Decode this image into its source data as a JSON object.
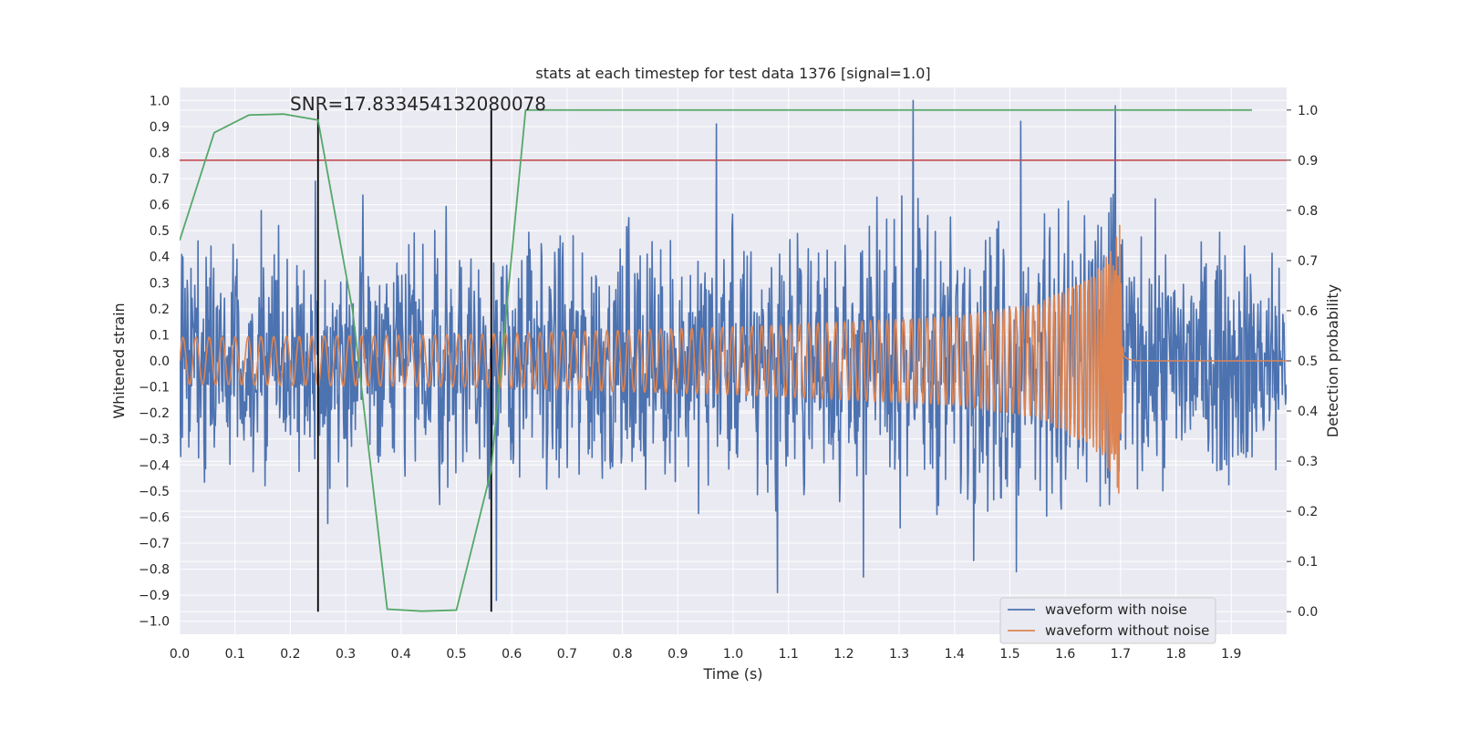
{
  "chart_data": {
    "type": "line",
    "title": "stats at each timestep for test data 1376 [signal=1.0]",
    "xlabel": "Time (s)",
    "ylabel_left": "Whitened strain",
    "ylabel_right": "Detection probability",
    "annotation": "SNR=17.833454132080078",
    "xlim": [
      0.0,
      2.0
    ],
    "ylim_left": [
      -1.05,
      1.05
    ],
    "ylim_right": [
      -0.045,
      1.045
    ],
    "x_ticks": [
      "0.0",
      "0.1",
      "0.2",
      "0.3",
      "0.4",
      "0.5",
      "0.6",
      "0.7",
      "0.8",
      "0.9",
      "1.0",
      "1.1",
      "1.2",
      "1.3",
      "1.4",
      "1.5",
      "1.6",
      "1.7",
      "1.8",
      "1.9"
    ],
    "y_ticks_left": [
      "1.0",
      "0.9",
      "0.8",
      "0.7",
      "0.6",
      "0.5",
      "0.4",
      "0.3",
      "0.2",
      "0.1",
      "0.0",
      "−0.1",
      "−0.2",
      "−0.3",
      "−0.4",
      "−0.5",
      "−0.6",
      "−0.7",
      "−0.8",
      "−0.9",
      "−1.0"
    ],
    "y_ticks_right": [
      "1.0",
      "0.9",
      "0.8",
      "0.7",
      "0.6",
      "0.5",
      "0.4",
      "0.3",
      "0.2",
      "0.1",
      "0.0"
    ],
    "grid": true,
    "legend": {
      "placement": "lower-right",
      "entries": [
        "waveform with noise",
        "waveform without noise"
      ]
    },
    "colors": {
      "noise": "#4c72b0",
      "clean": "#dd8452",
      "probability": "#55a868",
      "threshold": "#c44e52",
      "markers": "#000000",
      "background": "#eaeaf2"
    },
    "threshold_probability": 0.9,
    "vertical_markers_x": [
      0.25,
      0.563
    ],
    "detection_probability": {
      "x": [
        0.0,
        0.0625,
        0.125,
        0.1875,
        0.25,
        0.3125,
        0.375,
        0.4375,
        0.5,
        0.5625,
        0.625,
        0.6875,
        0.75,
        0.8125,
        0.875,
        0.9375,
        1.0,
        1.0625,
        1.125,
        1.1875,
        1.25,
        1.3125,
        1.375,
        1.4375,
        1.5,
        1.5625,
        1.625,
        1.6875,
        1.75,
        1.8125,
        1.875,
        1.9375
      ],
      "y": [
        0.74,
        0.955,
        0.99,
        0.992,
        0.98,
        0.6,
        0.005,
        0.001,
        0.003,
        0.28,
        1.0,
        1.0,
        1.0,
        1.0,
        1.0,
        1.0,
        1.0,
        1.0,
        1.0,
        1.0,
        1.0,
        1.0,
        1.0,
        1.0,
        1.0,
        1.0,
        1.0,
        1.0,
        1.0,
        1.0,
        1.0,
        1.0
      ]
    },
    "clean_waveform": {
      "description_points": [
        [
          0.0,
          0.09
        ],
        [
          1.0,
          0.13
        ],
        [
          1.5,
          0.2
        ],
        [
          1.65,
          0.35
        ],
        [
          1.698,
          0.55
        ],
        [
          1.705,
          0.0
        ],
        [
          2.0,
          0.0
        ]
      ],
      "x": [
        0.0,
        0.5,
        1.0,
        1.4,
        1.55,
        1.65,
        1.69,
        1.698,
        1.705,
        2.0
      ],
      "amplitude": [
        0.09,
        0.1,
        0.13,
        0.17,
        0.22,
        0.33,
        0.46,
        0.56,
        0.0,
        0.0
      ]
    },
    "noisy_waveform": {
      "typical_range": [
        -0.85,
        0.95
      ],
      "peaks": [
        {
          "x": 1.325,
          "y": 1.0
        },
        {
          "x": 0.97,
          "y": 0.91
        },
        {
          "x": 1.52,
          "y": 0.92
        },
        {
          "x": 1.69,
          "y": 0.98
        },
        {
          "x": 0.245,
          "y": 0.69
        },
        {
          "x": 0.572,
          "y": -0.92
        },
        {
          "x": 1.08,
          "y": -0.89
        },
        {
          "x": 1.235,
          "y": -0.83
        },
        {
          "x": 1.512,
          "y": -0.81
        }
      ]
    }
  }
}
